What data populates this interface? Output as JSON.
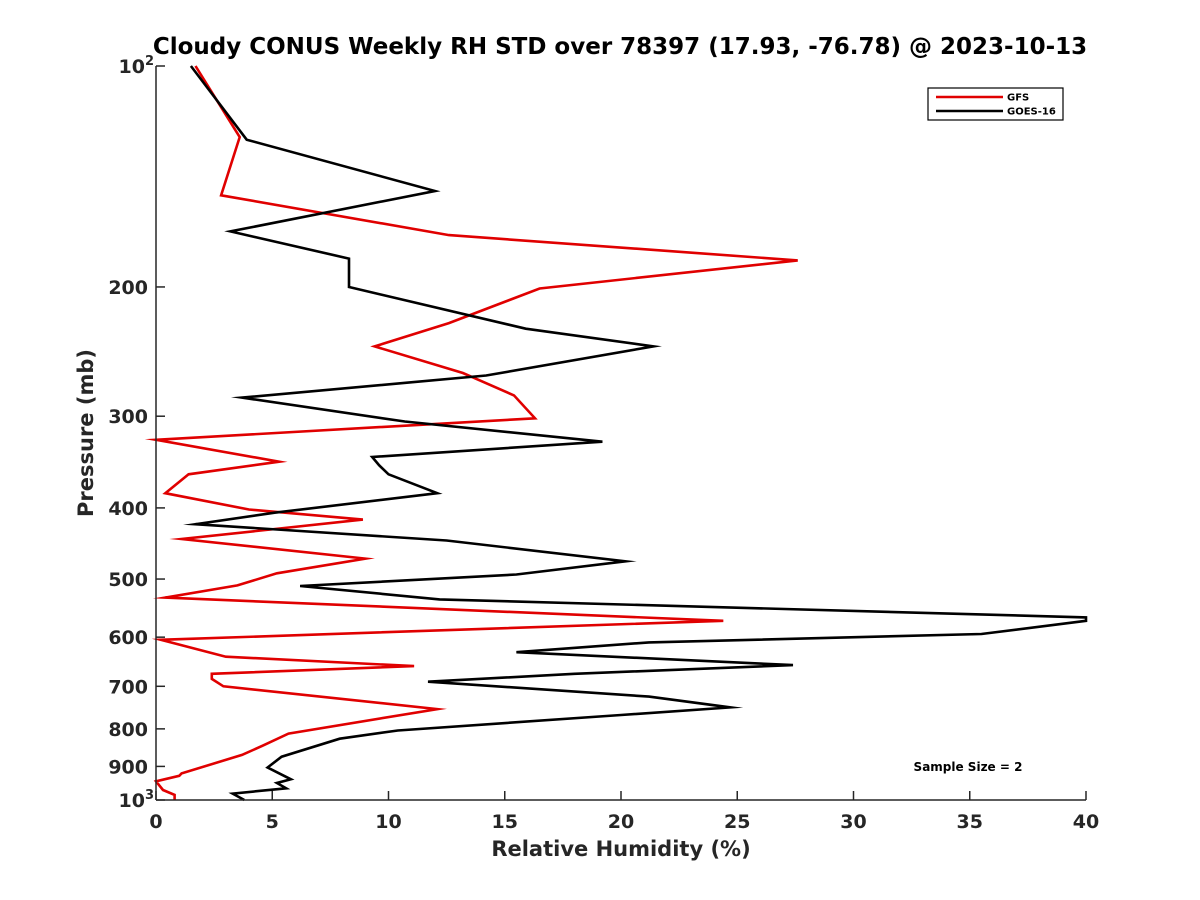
{
  "chart_data": {
    "type": "line",
    "title": "Cloudy CONUS Weekly RH STD over 78397 (17.93, -76.78) @ 2023-10-13",
    "xlabel": "Relative Humidity (%)",
    "ylabel": "Pressure (mb)",
    "xlim": [
      0,
      40
    ],
    "ylim": [
      100,
      1000
    ],
    "yscale": "log",
    "y_reversed": true,
    "grid": false,
    "legend_position": "top-right",
    "x_ticks": [
      "0",
      "5",
      "10",
      "15",
      "20",
      "25",
      "30",
      "35",
      "40"
    ],
    "y_ticks": [
      {
        "value": 100,
        "base": "10",
        "exp": "2"
      },
      {
        "value": 200,
        "label": "200"
      },
      {
        "value": 300,
        "label": "300"
      },
      {
        "value": 400,
        "label": "400"
      },
      {
        "value": 500,
        "label": "500"
      },
      {
        "value": 600,
        "label": "600"
      },
      {
        "value": 700,
        "label": "700"
      },
      {
        "value": 800,
        "label": "800"
      },
      {
        "value": 900,
        "label": "900"
      },
      {
        "value": 1000,
        "base": "10",
        "exp": "3"
      }
    ],
    "annotation": "Sample Size = 2",
    "series": [
      {
        "name": "GFS",
        "color": "#e00000",
        "points": [
          [
            1.7,
            100
          ],
          [
            3.6,
            125
          ],
          [
            2.8,
            150
          ],
          [
            12.6,
            170
          ],
          [
            27.6,
            184
          ],
          [
            16.5,
            201
          ],
          [
            12.6,
            224
          ],
          [
            9.4,
            241
          ],
          [
            13.2,
            262
          ],
          [
            15.4,
            281
          ],
          [
            16.3,
            302
          ],
          [
            0,
            323
          ],
          [
            5.3,
            346
          ],
          [
            1.4,
            360
          ],
          [
            0.4,
            382
          ],
          [
            4,
            402
          ],
          [
            8.9,
            415
          ],
          [
            1.1,
            441
          ],
          [
            9,
            469
          ],
          [
            5.2,
            491
          ],
          [
            3.5,
            510
          ],
          [
            0.4,
            530
          ],
          [
            24.4,
            570
          ],
          [
            0.2,
            605
          ],
          [
            3,
            638
          ],
          [
            11.1,
            657
          ],
          [
            2.4,
            673
          ],
          [
            2.4,
            684
          ],
          [
            2.9,
            700
          ],
          [
            12.1,
            752
          ],
          [
            5.7,
            812
          ],
          [
            4.6,
            843
          ],
          [
            3.7,
            868
          ],
          [
            1.1,
            920
          ],
          [
            1,
            927
          ],
          [
            0,
            943
          ],
          [
            0.3,
            969
          ],
          [
            0.8,
            984
          ],
          [
            0.8,
            1000
          ]
        ]
      },
      {
        "name": "GOES-16",
        "color": "#000000",
        "points": [
          [
            1.5,
            100
          ],
          [
            3.9,
            126
          ],
          [
            12,
            148
          ],
          [
            3.2,
            168
          ],
          [
            8.3,
            183
          ],
          [
            8.3,
            200
          ],
          [
            15.9,
            228
          ],
          [
            21.4,
            241
          ],
          [
            14.2,
            264
          ],
          [
            3.7,
            283
          ],
          [
            10.7,
            305
          ],
          [
            19.2,
            325
          ],
          [
            9.3,
            341
          ],
          [
            9.6,
            350
          ],
          [
            10,
            360
          ],
          [
            12.1,
            382
          ],
          [
            5.1,
            406
          ],
          [
            1.7,
            421
          ],
          [
            12.5,
            443
          ],
          [
            20.2,
            473
          ],
          [
            15.5,
            493
          ],
          [
            6.2,
            511
          ],
          [
            12.2,
            533
          ],
          [
            40,
            564
          ],
          [
            40,
            570
          ],
          [
            35.5,
            594
          ],
          [
            21.2,
            610
          ],
          [
            15.5,
            629
          ],
          [
            27.4,
            655
          ],
          [
            18,
            673
          ],
          [
            11.7,
            690
          ],
          [
            21.2,
            723
          ],
          [
            24.7,
            748
          ],
          [
            20,
            766
          ],
          [
            10.4,
            804
          ],
          [
            7.9,
            825
          ],
          [
            5.4,
            873
          ],
          [
            4.8,
            903
          ],
          [
            5.8,
            937
          ],
          [
            5.2,
            948
          ],
          [
            5.6,
            964
          ],
          [
            3.3,
            980
          ],
          [
            3.8,
            1000
          ]
        ]
      }
    ]
  }
}
